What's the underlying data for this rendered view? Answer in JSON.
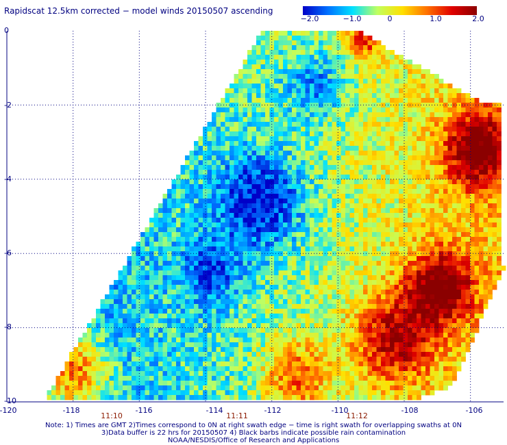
{
  "title": "Rapidscat 12.5km corrected − model winds 20150507 ascending",
  "colorbar": {
    "labels": [
      "−2.0",
      "−1.0",
      "0",
      "1.0",
      "2.0"
    ],
    "stops": [
      "#0000c8",
      "#0070ff",
      "#00e0ff",
      "#c0ff60",
      "#ffe000",
      "#ff7000",
      "#e00000",
      "#8b0000"
    ]
  },
  "map": {
    "lon_range": [
      -120,
      -105
    ],
    "lat_range": [
      -10,
      0
    ],
    "x_ticks": [
      "-120",
      "-118",
      "-116",
      "-114",
      "-112",
      "-110",
      "-108",
      "-106"
    ],
    "y_ticks": [
      "0",
      "-2",
      "-4",
      "-6",
      "-8",
      "-10"
    ],
    "time_labels": [
      "11:10",
      "11:11",
      "11:12"
    ],
    "grid": true,
    "swath_corners_lonlat": [
      [
        -118.9,
        -10
      ],
      [
        -112.3,
        0
      ],
      [
        -109.4,
        0
      ],
      [
        -105.5,
        -2
      ],
      [
        -105.1,
        -2
      ],
      [
        -105.0,
        -6.5
      ],
      [
        -106.6,
        -9.6
      ],
      [
        -107.8,
        -10
      ]
    ]
  },
  "notes": {
    "line1": "Note: 1) Times are GMT 2)Times correspond to 0N at right swath edge − time is right swath for overlapping swaths at 0N",
    "line2": "3)Data buffer is 22 hrs for 20150507 4) Black barbs indicate possible rain contamination",
    "line3": "NOAA/NESDIS/Office of Research and Applications"
  }
}
